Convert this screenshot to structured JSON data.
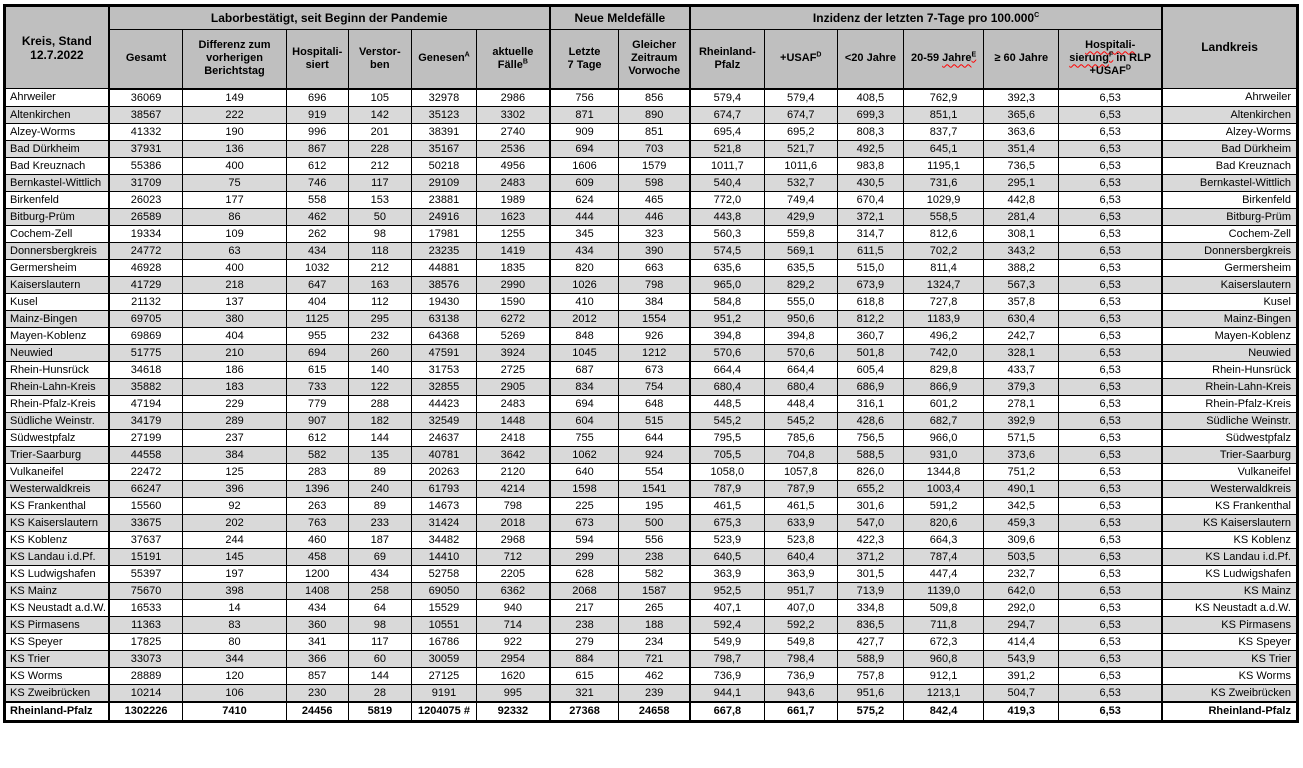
{
  "colors": {
    "header_bg": "#BFBFBF",
    "row_alt": "#D9D9D9",
    "border": "#000000",
    "squiggle": "#FF0000",
    "text": "#000000"
  },
  "table": {
    "stand_date": "12.7.2022",
    "title_cell": [
      {
        "t": "Kreis, Stand"
      },
      {
        "br": true
      },
      {
        "t": "12.7.2022"
      }
    ],
    "groups": {
      "labor": [
        {
          "t": "Laborbestätigt, seit Beginn der Pandemie"
        }
      ],
      "melde": [
        {
          "t": "Neue Meldefälle"
        }
      ],
      "inzidenz": [
        {
          "t": "Inzidenz der letzten 7-Tage pro 100.000"
        },
        {
          "t": "C",
          "sup": true
        }
      ]
    },
    "columns": [
      [
        {
          "t": "Gesamt"
        }
      ],
      [
        {
          "t": "Differenz zum"
        },
        {
          "br": true
        },
        {
          "t": "vorherigen"
        },
        {
          "br": true
        },
        {
          "t": "Berichtstag"
        }
      ],
      [
        {
          "t": "Hospitali-"
        },
        {
          "br": true
        },
        {
          "t": "siert"
        }
      ],
      [
        {
          "t": "Verstor-"
        },
        {
          "br": true
        },
        {
          "t": "ben"
        }
      ],
      [
        {
          "t": "Genesen"
        },
        {
          "t": "A",
          "sup": true
        }
      ],
      [
        {
          "t": "aktuelle"
        },
        {
          "br": true
        },
        {
          "t": "Fälle"
        },
        {
          "t": "B",
          "sup": true
        }
      ],
      [
        {
          "t": "Letzte"
        },
        {
          "br": true
        },
        {
          "t": "7 Tage"
        }
      ],
      [
        {
          "t": "Gleicher"
        },
        {
          "br": true
        },
        {
          "t": "Zeitraum"
        },
        {
          "br": true
        },
        {
          "t": "Vorwoche"
        }
      ],
      [
        {
          "t": "Rheinland-"
        },
        {
          "br": true
        },
        {
          "t": "Pfalz"
        }
      ],
      [
        {
          "t": "+USAF"
        },
        {
          "t": "D",
          "sup": true
        }
      ],
      [
        {
          "t": "<20 Jahre"
        }
      ],
      [
        {
          "t": "20-59 "
        },
        {
          "t": "Jahre",
          "wavy": true
        },
        {
          "t": "E",
          "sup": true,
          "wavy": true
        }
      ],
      [
        {
          "t": "≥ 60 Jahre"
        }
      ],
      [
        {
          "t": "Hospitali-",
          "wavy": true
        },
        {
          "br": true
        },
        {
          "t": "sierung",
          "wavy": true
        },
        {
          "t": "F",
          "sup": true,
          "wavy": true
        },
        {
          "t": " in RLP"
        },
        {
          "br": true
        },
        {
          "t": "+USAF"
        },
        {
          "t": "D",
          "sup": true
        }
      ],
      [
        {
          "t": "Landkreis"
        }
      ]
    ],
    "rows": [
      [
        "Ahrweiler",
        "36069",
        "149",
        "696",
        "105",
        "32978",
        "2986",
        "756",
        "856",
        "579,4",
        "579,4",
        "408,5",
        "762,9",
        "392,3",
        "6,53",
        "Ahrweiler"
      ],
      [
        "Altenkirchen",
        "38567",
        "222",
        "919",
        "142",
        "35123",
        "3302",
        "871",
        "890",
        "674,7",
        "674,7",
        "699,3",
        "851,1",
        "365,6",
        "6,53",
        "Altenkirchen"
      ],
      [
        "Alzey-Worms",
        "41332",
        "190",
        "996",
        "201",
        "38391",
        "2740",
        "909",
        "851",
        "695,4",
        "695,2",
        "808,3",
        "837,7",
        "363,6",
        "6,53",
        "Alzey-Worms"
      ],
      [
        "Bad Dürkheim",
        "37931",
        "136",
        "867",
        "228",
        "35167",
        "2536",
        "694",
        "703",
        "521,8",
        "521,7",
        "492,5",
        "645,1",
        "351,4",
        "6,53",
        "Bad Dürkheim"
      ],
      [
        "Bad Kreuznach",
        "55386",
        "400",
        "612",
        "212",
        "50218",
        "4956",
        "1606",
        "1579",
        "1011,7",
        "1011,6",
        "983,8",
        "1195,1",
        "736,5",
        "6,53",
        "Bad Kreuznach"
      ],
      [
        "Bernkastel-Wittlich",
        "31709",
        "75",
        "746",
        "117",
        "29109",
        "2483",
        "609",
        "598",
        "540,4",
        "532,7",
        "430,5",
        "731,6",
        "295,1",
        "6,53",
        "Bernkastel-Wittlich"
      ],
      [
        "Birkenfeld",
        "26023",
        "177",
        "558",
        "153",
        "23881",
        "1989",
        "624",
        "465",
        "772,0",
        "749,4",
        "670,4",
        "1029,9",
        "442,8",
        "6,53",
        "Birkenfeld"
      ],
      [
        "Bitburg-Prüm",
        "26589",
        "86",
        "462",
        "50",
        "24916",
        "1623",
        "444",
        "446",
        "443,8",
        "429,9",
        "372,1",
        "558,5",
        "281,4",
        "6,53",
        "Bitburg-Prüm"
      ],
      [
        "Cochem-Zell",
        "19334",
        "109",
        "262",
        "98",
        "17981",
        "1255",
        "345",
        "323",
        "560,3",
        "559,8",
        "314,7",
        "812,6",
        "308,1",
        "6,53",
        "Cochem-Zell"
      ],
      [
        "Donnersbergkreis",
        "24772",
        "63",
        "434",
        "118",
        "23235",
        "1419",
        "434",
        "390",
        "574,5",
        "569,1",
        "611,5",
        "702,2",
        "343,2",
        "6,53",
        "Donnersbergkreis"
      ],
      [
        "Germersheim",
        "46928",
        "400",
        "1032",
        "212",
        "44881",
        "1835",
        "820",
        "663",
        "635,6",
        "635,5",
        "515,0",
        "811,4",
        "388,2",
        "6,53",
        "Germersheim"
      ],
      [
        "Kaiserslautern",
        "41729",
        "218",
        "647",
        "163",
        "38576",
        "2990",
        "1026",
        "798",
        "965,0",
        "829,2",
        "673,9",
        "1324,7",
        "567,3",
        "6,53",
        "Kaiserslautern"
      ],
      [
        "Kusel",
        "21132",
        "137",
        "404",
        "112",
        "19430",
        "1590",
        "410",
        "384",
        "584,8",
        "555,0",
        "618,8",
        "727,8",
        "357,8",
        "6,53",
        "Kusel"
      ],
      [
        "Mainz-Bingen",
        "69705",
        "380",
        "1125",
        "295",
        "63138",
        "6272",
        "2012",
        "1554",
        "951,2",
        "950,6",
        "812,2",
        "1183,9",
        "630,4",
        "6,53",
        "Mainz-Bingen"
      ],
      [
        "Mayen-Koblenz",
        "69869",
        "404",
        "955",
        "232",
        "64368",
        "5269",
        "848",
        "926",
        "394,8",
        "394,8",
        "360,7",
        "496,2",
        "242,7",
        "6,53",
        "Mayen-Koblenz"
      ],
      [
        "Neuwied",
        "51775",
        "210",
        "694",
        "260",
        "47591",
        "3924",
        "1045",
        "1212",
        "570,6",
        "570,6",
        "501,8",
        "742,0",
        "328,1",
        "6,53",
        "Neuwied"
      ],
      [
        "Rhein-Hunsrück",
        "34618",
        "186",
        "615",
        "140",
        "31753",
        "2725",
        "687",
        "673",
        "664,4",
        "664,4",
        "605,4",
        "829,8",
        "433,7",
        "6,53",
        "Rhein-Hunsrück"
      ],
      [
        "Rhein-Lahn-Kreis",
        "35882",
        "183",
        "733",
        "122",
        "32855",
        "2905",
        "834",
        "754",
        "680,4",
        "680,4",
        "686,9",
        "866,9",
        "379,3",
        "6,53",
        "Rhein-Lahn-Kreis"
      ],
      [
        "Rhein-Pfalz-Kreis",
        "47194",
        "229",
        "779",
        "288",
        "44423",
        "2483",
        "694",
        "648",
        "448,5",
        "448,4",
        "316,1",
        "601,2",
        "278,1",
        "6,53",
        "Rhein-Pfalz-Kreis"
      ],
      [
        "Südliche Weinstr.",
        "34179",
        "289",
        "907",
        "182",
        "32549",
        "1448",
        "604",
        "515",
        "545,2",
        "545,2",
        "428,6",
        "682,7",
        "392,9",
        "6,53",
        "Südliche Weinstr."
      ],
      [
        "Südwestpfalz",
        "27199",
        "237",
        "612",
        "144",
        "24637",
        "2418",
        "755",
        "644",
        "795,5",
        "785,6",
        "756,5",
        "966,0",
        "571,5",
        "6,53",
        "Südwestpfalz"
      ],
      [
        "Trier-Saarburg",
        "44558",
        "384",
        "582",
        "135",
        "40781",
        "3642",
        "1062",
        "924",
        "705,5",
        "704,8",
        "588,5",
        "931,0",
        "373,6",
        "6,53",
        "Trier-Saarburg"
      ],
      [
        "Vulkaneifel",
        "22472",
        "125",
        "283",
        "89",
        "20263",
        "2120",
        "640",
        "554",
        "1058,0",
        "1057,8",
        "826,0",
        "1344,8",
        "751,2",
        "6,53",
        "Vulkaneifel"
      ],
      [
        "Westerwaldkreis",
        "66247",
        "396",
        "1396",
        "240",
        "61793",
        "4214",
        "1598",
        "1541",
        "787,9",
        "787,9",
        "655,2",
        "1003,4",
        "490,1",
        "6,53",
        "Westerwaldkreis"
      ],
      [
        "KS Frankenthal",
        "15560",
        "92",
        "263",
        "89",
        "14673",
        "798",
        "225",
        "195",
        "461,5",
        "461,5",
        "301,6",
        "591,2",
        "342,5",
        "6,53",
        "KS Frankenthal"
      ],
      [
        "KS Kaiserslautern",
        "33675",
        "202",
        "763",
        "233",
        "31424",
        "2018",
        "673",
        "500",
        "675,3",
        "633,9",
        "547,0",
        "820,6",
        "459,3",
        "6,53",
        "KS Kaiserslautern"
      ],
      [
        "KS Koblenz",
        "37637",
        "244",
        "460",
        "187",
        "34482",
        "2968",
        "594",
        "556",
        "523,9",
        "523,8",
        "422,3",
        "664,3",
        "309,6",
        "6,53",
        "KS Koblenz"
      ],
      [
        "KS Landau i.d.Pf.",
        "15191",
        "145",
        "458",
        "69",
        "14410",
        "712",
        "299",
        "238",
        "640,5",
        "640,4",
        "371,2",
        "787,4",
        "503,5",
        "6,53",
        "KS Landau i.d.Pf."
      ],
      [
        "KS Ludwigshafen",
        "55397",
        "197",
        "1200",
        "434",
        "52758",
        "2205",
        "628",
        "582",
        "363,9",
        "363,9",
        "301,5",
        "447,4",
        "232,7",
        "6,53",
        "KS Ludwigshafen"
      ],
      [
        "KS Mainz",
        "75670",
        "398",
        "1408",
        "258",
        "69050",
        "6362",
        "2068",
        "1587",
        "952,5",
        "951,7",
        "713,9",
        "1139,0",
        "642,0",
        "6,53",
        "KS Mainz"
      ],
      [
        "KS Neustadt a.d.W.",
        "16533",
        "14",
        "434",
        "64",
        "15529",
        "940",
        "217",
        "265",
        "407,1",
        "407,0",
        "334,8",
        "509,8",
        "292,0",
        "6,53",
        "KS Neustadt a.d.W."
      ],
      [
        "KS Pirmasens",
        "11363",
        "83",
        "360",
        "98",
        "10551",
        "714",
        "238",
        "188",
        "592,4",
        "592,2",
        "836,5",
        "711,8",
        "294,7",
        "6,53",
        "KS Pirmasens"
      ],
      [
        "KS Speyer",
        "17825",
        "80",
        "341",
        "117",
        "16786",
        "922",
        "279",
        "234",
        "549,9",
        "549,8",
        "427,7",
        "672,3",
        "414,4",
        "6,53",
        "KS Speyer"
      ],
      [
        "KS Trier",
        "33073",
        "344",
        "366",
        "60",
        "30059",
        "2954",
        "884",
        "721",
        "798,7",
        "798,4",
        "588,9",
        "960,8",
        "543,9",
        "6,53",
        "KS Trier"
      ],
      [
        "KS Worms",
        "28889",
        "120",
        "857",
        "144",
        "27125",
        "1620",
        "615",
        "462",
        "736,9",
        "736,9",
        "757,8",
        "912,1",
        "391,2",
        "6,53",
        "KS Worms"
      ],
      [
        "KS Zweibrücken",
        "10214",
        "106",
        "230",
        "28",
        "9191",
        "995",
        "321",
        "239",
        "944,1",
        "943,6",
        "951,6",
        "1213,1",
        "504,7",
        "6,53",
        "KS Zweibrücken"
      ]
    ],
    "total": [
      "Rheinland-Pfalz",
      "1302226",
      "7410",
      "24456",
      "5819",
      "1204075 #",
      "92332",
      "27368",
      "24658",
      "667,8",
      "661,7",
      "575,2",
      "842,4",
      "419,3",
      "6,53",
      "Rheinland-Pfalz"
    ]
  }
}
